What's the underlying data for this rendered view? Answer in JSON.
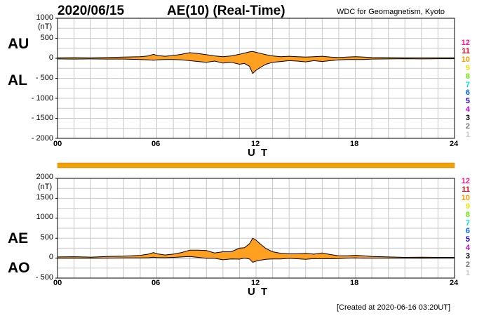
{
  "header": {
    "date": "2020/06/15",
    "title": "AE(10) (Real-Time)",
    "organization": "WDC for Geomagnetism, Kyoto"
  },
  "footer": {
    "created": "[Created at 2020-06-16 03:20UT]"
  },
  "top_panel": {
    "labels": {
      "upper": "AU",
      "lower": "AL"
    },
    "unit": "(nT)",
    "y_ticks": [
      "1000",
      "500",
      "0",
      "- 500",
      "- 1000",
      "- 1500",
      "- 2000"
    ],
    "x_ticks": [
      "00",
      "06",
      "12",
      "18",
      "24"
    ],
    "x_label": "U T"
  },
  "bottom_panel": {
    "labels": {
      "upper": "AE",
      "lower": "AO"
    },
    "unit": "(nT)",
    "y_ticks": [
      "2000",
      "1500",
      "1000",
      "500",
      "0",
      "- 500"
    ],
    "x_ticks": [
      "00",
      "06",
      "12",
      "18",
      "24"
    ],
    "x_label": "U T"
  },
  "station_legend": [
    {
      "label": "12",
      "color": "#ff1493"
    },
    {
      "label": "11",
      "color": "#e8001a"
    },
    {
      "label": "10",
      "color": "#ff9900"
    },
    {
      "label": "9",
      "color": "#e8e800"
    },
    {
      "label": "8",
      "color": "#66ee00"
    },
    {
      "label": "7",
      "color": "#00e0e0"
    },
    {
      "label": "6",
      "color": "#0066ff"
    },
    {
      "label": "5",
      "color": "#1a00cc"
    },
    {
      "label": "4",
      "color": "#cc00cc"
    },
    {
      "label": "3",
      "color": "#000000"
    },
    {
      "label": "2",
      "color": "#777777"
    },
    {
      "label": "1",
      "color": "#c8c8c8"
    }
  ],
  "colors": {
    "fill": "#ffa020",
    "line": "#000000",
    "grid": "#c8c8c8",
    "station_bar": "#f0a000"
  },
  "chart_data": [
    {
      "type": "area",
      "panel": "AU/AL",
      "xlabel": "U T",
      "ylabel": "(nT)",
      "xlim": [
        0,
        24
      ],
      "ylim": [
        -2000,
        1000
      ],
      "grid": true,
      "series": [
        {
          "name": "AU",
          "x": [
            0,
            1,
            2,
            3,
            4,
            5,
            5.5,
            5.8,
            6,
            6.5,
            7,
            7.5,
            8,
            8.5,
            9,
            9.5,
            10,
            10.5,
            11,
            11.3,
            11.6,
            11.8,
            12,
            12.3,
            12.6,
            13,
            13.5,
            14,
            14.5,
            15,
            15.5,
            16,
            16.5,
            17,
            17.5,
            18,
            18.5,
            19,
            20,
            21,
            22,
            23,
            24
          ],
          "values": [
            10,
            15,
            10,
            20,
            30,
            40,
            60,
            100,
            70,
            50,
            70,
            100,
            140,
            120,
            90,
            60,
            40,
            60,
            100,
            130,
            160,
            170,
            150,
            120,
            90,
            60,
            40,
            50,
            40,
            30,
            40,
            50,
            30,
            20,
            30,
            40,
            30,
            20,
            15,
            10,
            10,
            10,
            10
          ]
        },
        {
          "name": "AL",
          "x": [
            0,
            1,
            2,
            3,
            4,
            5,
            5.5,
            5.8,
            6,
            6.5,
            7,
            7.5,
            8,
            8.5,
            9,
            9.5,
            10,
            10.5,
            11,
            11.3,
            11.6,
            11.8,
            12,
            12.3,
            12.6,
            13,
            13.5,
            14,
            14.5,
            15,
            15.5,
            16,
            16.5,
            17,
            17.5,
            18,
            18.5,
            19,
            20,
            21,
            22,
            23,
            24
          ],
          "values": [
            -15,
            -20,
            -15,
            -20,
            -20,
            -30,
            -40,
            -50,
            -40,
            -30,
            -30,
            -40,
            -60,
            -80,
            -100,
            -70,
            -120,
            -100,
            -150,
            -130,
            -200,
            -380,
            -300,
            -220,
            -150,
            -100,
            -80,
            -60,
            -70,
            -90,
            -60,
            -80,
            -60,
            -40,
            -30,
            -30,
            -30,
            -20,
            -15,
            -10,
            -15,
            -10,
            -10
          ]
        }
      ]
    },
    {
      "type": "area",
      "panel": "AE/AO",
      "xlabel": "U T",
      "ylabel": "(nT)",
      "xlim": [
        0,
        24
      ],
      "ylim": [
        -500,
        2000
      ],
      "grid": true,
      "series": [
        {
          "name": "AE",
          "x": [
            0,
            1,
            2,
            3,
            4,
            5,
            5.5,
            5.8,
            6,
            6.5,
            7,
            7.5,
            8,
            8.5,
            9,
            9.5,
            10,
            10.5,
            11,
            11.3,
            11.6,
            11.8,
            12,
            12.3,
            12.6,
            13,
            13.5,
            14,
            14.5,
            15,
            15.5,
            16,
            16.5,
            17,
            17.5,
            18,
            18.5,
            19,
            20,
            21,
            22,
            23,
            24
          ],
          "values": [
            30,
            35,
            25,
            40,
            50,
            70,
            100,
            140,
            110,
            80,
            100,
            140,
            200,
            200,
            190,
            130,
            160,
            160,
            250,
            260,
            360,
            500,
            450,
            340,
            240,
            160,
            120,
            110,
            110,
            120,
            100,
            130,
            90,
            60,
            60,
            70,
            60,
            40,
            30,
            20,
            25,
            20,
            20
          ]
        },
        {
          "name": "AO",
          "x": [
            0,
            1,
            2,
            3,
            4,
            5,
            5.5,
            5.8,
            6,
            6.5,
            7,
            7.5,
            8,
            8.5,
            9,
            9.5,
            10,
            10.5,
            11,
            11.3,
            11.6,
            11.8,
            12,
            12.3,
            12.6,
            13,
            13.5,
            14,
            14.5,
            15,
            15.5,
            16,
            16.5,
            17,
            17.5,
            18,
            18.5,
            19,
            20,
            21,
            22,
            23,
            24
          ],
          "values": [
            -3,
            -3,
            -3,
            0,
            5,
            5,
            10,
            25,
            15,
            10,
            20,
            30,
            40,
            20,
            -5,
            -5,
            -40,
            -20,
            -25,
            0,
            -20,
            -105,
            -75,
            -50,
            -30,
            -20,
            -20,
            -5,
            -15,
            -30,
            -10,
            -15,
            -15,
            -10,
            0,
            5,
            0,
            0,
            0,
            0,
            -3,
            0,
            0
          ]
        }
      ]
    }
  ]
}
